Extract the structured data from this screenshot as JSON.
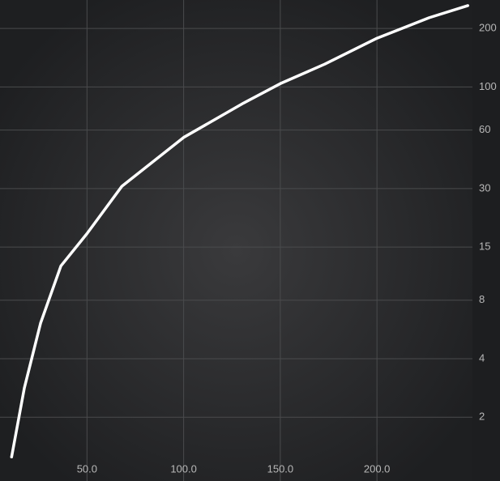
{
  "chart_data": {
    "type": "line",
    "x": [
      11,
      17.6,
      26,
      36.5,
      50,
      68,
      100,
      131,
      150,
      173,
      200,
      227,
      247
    ],
    "series": [
      {
        "color": "#ffffff",
        "values": [
          1.25,
          2.83,
          6.1,
          12,
          17.6,
          30.8,
          55,
          82.6,
          104,
          131,
          178,
          227,
          262
        ]
      }
    ],
    "xlim": [
      5,
      249.4
    ],
    "xticks": [
      {
        "value": 50,
        "label": "50.0"
      },
      {
        "value": 100,
        "label": "100.0"
      },
      {
        "value": 150,
        "label": "150.0"
      },
      {
        "value": 200,
        "label": "200.0"
      }
    ],
    "ylim": [
      0.94,
      280
    ],
    "yticks": [
      2,
      4,
      8,
      15,
      30,
      60,
      100,
      200
    ],
    "y_scale": "log",
    "y_axis_side": "right",
    "grid": true
  }
}
